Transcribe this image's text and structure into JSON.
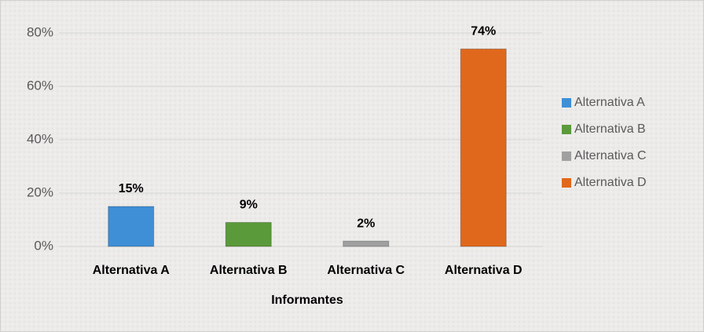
{
  "chart_data": {
    "type": "bar",
    "x_label": "Informantes",
    "categories": [
      "Alternativa A",
      "Alternativa B",
      "Alternativa C",
      "Alternativa D"
    ],
    "values": [
      15,
      9,
      2,
      74
    ],
    "value_labels": [
      "15%",
      "9%",
      "2%",
      "74%"
    ],
    "colors": [
      "#3f8fd6",
      "#5b9a3b",
      "#a0a0a0",
      "#e0681c"
    ],
    "ylim": [
      0,
      80
    ],
    "yticks": [
      {
        "value": 0,
        "label": "0%"
      },
      {
        "value": 20,
        "label": "20%"
      },
      {
        "value": 40,
        "label": "40%"
      },
      {
        "value": 60,
        "label": "60%"
      },
      {
        "value": 80,
        "label": "80%"
      }
    ],
    "grid": true,
    "legend": "right"
  }
}
